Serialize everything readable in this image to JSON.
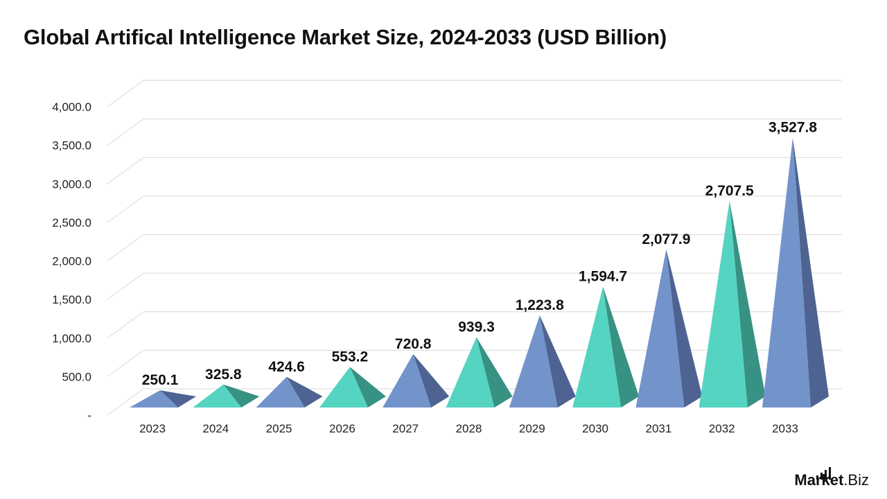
{
  "chart_data": {
    "type": "bar",
    "title": "Global Artifical Intelligence Market Size, 2024-2033 (USD Billion)",
    "xlabel": "",
    "ylabel": "",
    "categories": [
      "2023",
      "2024",
      "2025",
      "2026",
      "2027",
      "2028",
      "2029",
      "2030",
      "2031",
      "2032",
      "2033"
    ],
    "values": [
      250.1,
      325.8,
      424.6,
      553.2,
      720.8,
      939.3,
      1223.8,
      1594.7,
      2077.9,
      2707.5,
      3527.8
    ],
    "value_labels": [
      "250.1",
      "325.8",
      "424.6",
      "553.2",
      "720.8",
      "939.3",
      "1,223.8",
      "1,594.7",
      "2,077.9",
      "2,707.5",
      "3,527.8"
    ],
    "ylim": [
      0,
      4000
    ],
    "y_ticks": [
      0,
      500,
      1000,
      1500,
      2000,
      2500,
      3000,
      3500,
      4000
    ],
    "y_tick_labels": [
      "-",
      "500.0",
      "1,000.0",
      "1,500.0",
      "2,000.0",
      "2,500.0",
      "3,000.0",
      "3,500.0",
      "4,000.0"
    ],
    "grid": true,
    "legend": "none",
    "mark_shape": "pyramid",
    "colors": {
      "blue_front": "#7393cb",
      "blue_side": "#4e6391",
      "teal_front": "#55d4c1",
      "teal_side": "#379283",
      "grid": "#d9d9d9"
    },
    "bar_colors": [
      "blue",
      "teal",
      "blue",
      "teal",
      "blue",
      "teal",
      "blue",
      "teal",
      "blue",
      "teal",
      "blue"
    ]
  },
  "brand": {
    "name_main": "Market",
    "name_suffix": ".Biz",
    "icon": "signal-bars-icon"
  }
}
